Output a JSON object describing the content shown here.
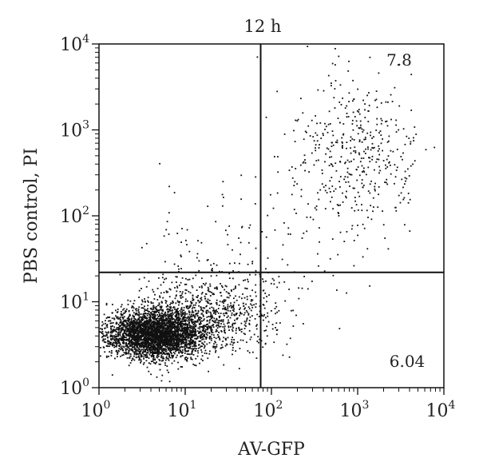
{
  "chart_data": {
    "type": "scatter",
    "title": "12 h",
    "xlabel": "AV-GFP",
    "ylabel": "PBS control, PI",
    "x_scale": "log",
    "y_scale": "log",
    "xlim": [
      1,
      10000
    ],
    "ylim": [
      1,
      10000
    ],
    "x_ticks": [
      {
        "base": "10",
        "exp": "0",
        "value": 1
      },
      {
        "base": "10",
        "exp": "1",
        "value": 10
      },
      {
        "base": "10",
        "exp": "2",
        "value": 100
      },
      {
        "base": "10",
        "exp": "3",
        "value": 1000
      },
      {
        "base": "10",
        "exp": "4",
        "value": 10000
      }
    ],
    "y_ticks": [
      {
        "base": "10",
        "exp": "0",
        "value": 1
      },
      {
        "base": "10",
        "exp": "1",
        "value": 10
      },
      {
        "base": "10",
        "exp": "2",
        "value": 100
      },
      {
        "base": "10",
        "exp": "3",
        "value": 1000
      },
      {
        "base": "10",
        "exp": "4",
        "value": 10000
      }
    ],
    "quadrant_gates": {
      "x": 75,
      "y": 22
    },
    "quadrant_labels": {
      "upper_right": "7.8",
      "lower_right": "6.04"
    },
    "populations": [
      {
        "shape": "dense",
        "center_log": [
          0.65,
          0.62
        ],
        "spread_log": [
          0.28,
          0.14
        ],
        "count": 3400
      },
      {
        "shape": "broad",
        "center_log": [
          1.3,
          0.85
        ],
        "spread_log": [
          0.42,
          0.22
        ],
        "count": 800
      },
      {
        "shape": "positive",
        "center_log": [
          3.0,
          2.7
        ],
        "spread_log": [
          0.38,
          0.5
        ],
        "count": 450
      },
      {
        "shape": "sparse",
        "center_log": [
          1.6,
          1.6
        ],
        "spread_log": [
          0.6,
          0.4
        ],
        "count": 120
      }
    ],
    "grid": false,
    "legend": "none",
    "point_color": "#111111",
    "axis_color": "#111111"
  }
}
